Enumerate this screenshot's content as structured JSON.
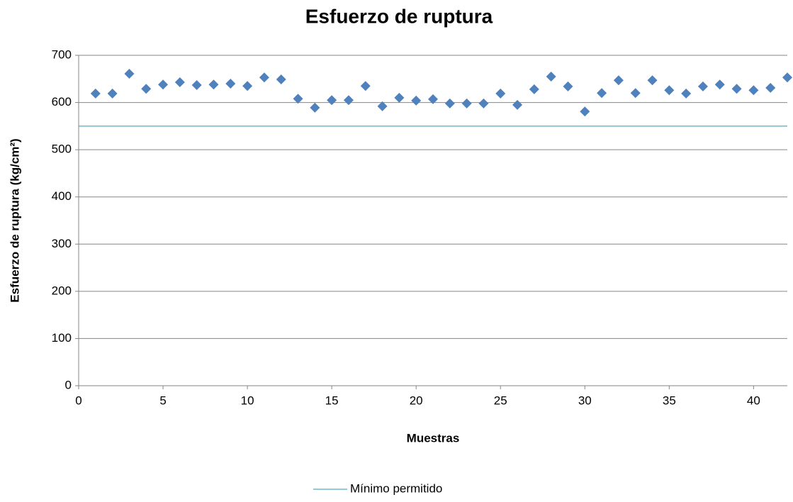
{
  "chart_data": {
    "type": "scatter",
    "title": "Esfuerzo de ruptura",
    "x_label": "Muestras",
    "y_label": "Esfuerzo de ruptura (kg/cm²)",
    "xlim": [
      0,
      42
    ],
    "xticks": [
      0,
      5,
      10,
      15,
      20,
      25,
      30,
      35,
      40
    ],
    "ylim": [
      0,
      700
    ],
    "yticks": [
      0,
      100,
      200,
      300,
      400,
      500,
      600,
      700
    ],
    "grid": true,
    "legend": "bottom",
    "series": [
      {
        "color": "#4f81bd",
        "mode": "markers",
        "x": [
          1,
          2,
          3,
          4,
          5,
          6,
          7,
          8,
          9,
          10,
          11,
          12,
          13,
          14,
          15,
          16,
          17,
          18,
          19,
          20,
          21,
          22,
          23,
          24,
          25,
          26,
          27,
          28,
          29,
          30,
          31,
          32,
          33,
          34,
          35,
          36,
          37,
          38,
          39,
          40,
          41,
          42
        ],
        "values": [
          619,
          619,
          661,
          629,
          638,
          643,
          637,
          638,
          640,
          635,
          653,
          649,
          608,
          589,
          605,
          605,
          635,
          592,
          610,
          604,
          607,
          598,
          598,
          598,
          619,
          595,
          628,
          655,
          634,
          581,
          620,
          647,
          620,
          647,
          626,
          619,
          634,
          638,
          629,
          626,
          631,
          653
        ]
      },
      {
        "name": "Mínimo permitido",
        "color": "#4bacc6",
        "mode": "line",
        "x": [
          0,
          42
        ],
        "values": [
          550,
          550
        ]
      }
    ]
  }
}
